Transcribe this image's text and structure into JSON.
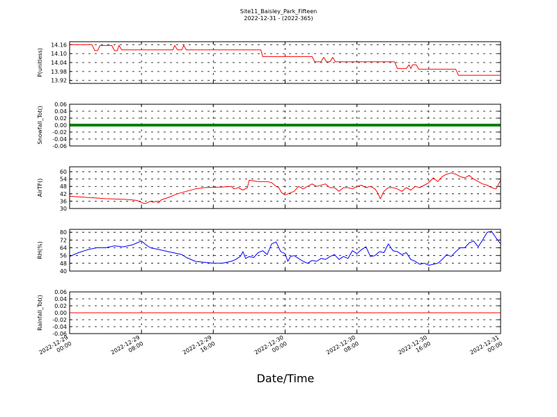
{
  "chart_data": {
    "type": "line",
    "title": "Site11_Baisley_Park_Fifteen",
    "subtitle": "2022-12-31 - (2022-365)",
    "xlabel": "Date/Time",
    "x_ticks": [
      {
        "line1": "2022-12-29",
        "line2": "00:00"
      },
      {
        "line1": "2022-12-29",
        "line2": "08:00"
      },
      {
        "line1": "2022-12-29",
        "line2": "16:00"
      },
      {
        "line1": "2022-12-30",
        "line2": "00:00"
      },
      {
        "line1": "2022-12-30",
        "line2": "08:00"
      },
      {
        "line1": "2022-12-30",
        "line2": "16:00"
      },
      {
        "line1": "2022-12-31",
        "line2": "00:00"
      }
    ],
    "x_range_hours": [
      0,
      48
    ],
    "grid": true,
    "panels": [
      {
        "ylabel": "P(unitless)",
        "ylim": [
          13.9,
          14.18
        ],
        "yticks": [
          "13.92",
          "13.98",
          "14.04",
          "14.10",
          "14.16"
        ],
        "series": [
          {
            "color": "#ff0000",
            "points": [
              [
                0,
                14.16
              ],
              [
                2.5,
                14.16
              ],
              [
                2.8,
                14.12
              ],
              [
                3.1,
                14.12
              ],
              [
                3.4,
                14.155
              ],
              [
                4.7,
                14.155
              ],
              [
                5,
                14.12
              ],
              [
                5.3,
                14.12
              ],
              [
                5.5,
                14.155
              ],
              [
                5.8,
                14.125
              ],
              [
                11.5,
                14.125
              ],
              [
                11.7,
                14.155
              ],
              [
                12,
                14.125
              ],
              [
                12.5,
                14.125
              ],
              [
                12.7,
                14.155
              ],
              [
                13,
                14.125
              ],
              [
                21.3,
                14.125
              ],
              [
                21.5,
                14.08
              ],
              [
                27,
                14.08
              ],
              [
                27.3,
                14.045
              ],
              [
                28,
                14.045
              ],
              [
                28.3,
                14.075
              ],
              [
                28.6,
                14.045
              ],
              [
                29,
                14.045
              ],
              [
                29.3,
                14.075
              ],
              [
                29.6,
                14.045
              ],
              [
                36.2,
                14.045
              ],
              [
                36.5,
                14.0
              ],
              [
                37.5,
                14.0
              ],
              [
                37.8,
                14.025
              ],
              [
                38,
                14.0
              ],
              [
                38.2,
                14.025
              ],
              [
                38.6,
                14.025
              ],
              [
                38.9,
                13.995
              ],
              [
                43,
                13.995
              ],
              [
                43.3,
                13.955
              ],
              [
                48,
                13.955
              ]
            ]
          }
        ]
      },
      {
        "ylabel": "Snowfall_Tot()",
        "ylim": [
          -0.06,
          0.06
        ],
        "yticks": [
          "-0.06",
          "-0.04",
          "-0.02",
          "0.00",
          "0.02",
          "0.04",
          "0.06"
        ],
        "series": [
          {
            "color": "#007f00",
            "thick": true,
            "points": [
              [
                0,
                0
              ],
              [
                48,
                0
              ]
            ]
          }
        ]
      },
      {
        "ylabel": "AirTF()",
        "ylim": [
          30,
          64
        ],
        "yticks": [
          "30",
          "36",
          "42",
          "48",
          "54",
          "60"
        ],
        "series": [
          {
            "color": "#ff0000",
            "points": [
              [
                0,
                40
              ],
              [
                2,
                39
              ],
              [
                4,
                38
              ],
              [
                6,
                37.5
              ],
              [
                7,
                37
              ],
              [
                7.5,
                36.5
              ],
              [
                8,
                35
              ],
              [
                8.3,
                34
              ],
              [
                8.6,
                34.5
              ],
              [
                9,
                36
              ],
              [
                9.3,
                35
              ],
              [
                9.6,
                36
              ],
              [
                9.9,
                34.5
              ],
              [
                10.2,
                37
              ],
              [
                11,
                39
              ],
              [
                12,
                42
              ],
              [
                13,
                44
              ],
              [
                14,
                46
              ],
              [
                15,
                47
              ],
              [
                17,
                47.5
              ],
              [
                18,
                48
              ],
              [
                18.3,
                46
              ],
              [
                18.8,
                47
              ],
              [
                19.3,
                45
              ],
              [
                19.8,
                47
              ],
              [
                20,
                53
              ],
              [
                21,
                52
              ],
              [
                22,
                52
              ],
              [
                22.5,
                51
              ],
              [
                23,
                48
              ],
              [
                23.3,
                47
              ],
              [
                23.6,
                43
              ],
              [
                24,
                41
              ],
              [
                24.5,
                42.5
              ],
              [
                25,
                44
              ],
              [
                25.5,
                48
              ],
              [
                26,
                46
              ],
              [
                26.5,
                48
              ],
              [
                27,
                50
              ],
              [
                27.5,
                48
              ],
              [
                28.5,
                50
              ],
              [
                29,
                47
              ],
              [
                29.5,
                47
              ],
              [
                30,
                44
              ],
              [
                30.5,
                47
              ],
              [
                31,
                47
              ],
              [
                31.5,
                46
              ],
              [
                32,
                48
              ],
              [
                32.5,
                49
              ],
              [
                33,
                47
              ],
              [
                33.5,
                48
              ],
              [
                34,
                46
              ],
              [
                34.3,
                43
              ],
              [
                34.6,
                38
              ],
              [
                35,
                44
              ],
              [
                35.5,
                47
              ],
              [
                36,
                47
              ],
              [
                36.5,
                46
              ],
              [
                37,
                44
              ],
              [
                37.5,
                47
              ],
              [
                38,
                45
              ],
              [
                38.5,
                48
              ],
              [
                39,
                47
              ],
              [
                39.5,
                49
              ],
              [
                40,
                51
              ],
              [
                40.5,
                55
              ],
              [
                41,
                52
              ],
              [
                41.5,
                56
              ],
              [
                42,
                58
              ],
              [
                42.5,
                59
              ],
              [
                43,
                58
              ],
              [
                43.5,
                56
              ],
              [
                44,
                55
              ],
              [
                44.5,
                57
              ],
              [
                45,
                54
              ],
              [
                45.5,
                52
              ],
              [
                46,
                50
              ],
              [
                46.5,
                49
              ],
              [
                47,
                47
              ],
              [
                47.5,
                46
              ],
              [
                48,
                53
              ]
            ]
          }
        ]
      },
      {
        "ylabel": "RH(%)",
        "ylim": [
          40,
          83
        ],
        "yticks": [
          "40",
          "48",
          "56",
          "64",
          "72",
          "80"
        ],
        "series": [
          {
            "color": "#0000ff",
            "points": [
              [
                0,
                55
              ],
              [
                1,
                59
              ],
              [
                2,
                62
              ],
              [
                3,
                64
              ],
              [
                4,
                64
              ],
              [
                5,
                66
              ],
              [
                6,
                65
              ],
              [
                7,
                67
              ],
              [
                7.5,
                69
              ],
              [
                8,
                71
              ],
              [
                8.5,
                67
              ],
              [
                9,
                64
              ],
              [
                10,
                62
              ],
              [
                11,
                60
              ],
              [
                12,
                58
              ],
              [
                12.5,
                57
              ],
              [
                13,
                54
              ],
              [
                14,
                50
              ],
              [
                15,
                49
              ],
              [
                16,
                48
              ],
              [
                17,
                48
              ],
              [
                18,
                50
              ],
              [
                18.5,
                52
              ],
              [
                19,
                55
              ],
              [
                19.3,
                60
              ],
              [
                19.6,
                53
              ],
              [
                20,
                55
              ],
              [
                20.5,
                54
              ],
              [
                21,
                59
              ],
              [
                21.5,
                61
              ],
              [
                22,
                57
              ],
              [
                22.5,
                68
              ],
              [
                23,
                70
              ],
              [
                23.5,
                60
              ],
              [
                24,
                58
              ],
              [
                24.3,
                50
              ],
              [
                24.6,
                55
              ],
              [
                25,
                56
              ],
              [
                25.5,
                53
              ],
              [
                26,
                50
              ],
              [
                26.5,
                48
              ],
              [
                27,
                51
              ],
              [
                27.5,
                50
              ],
              [
                28,
                53
              ],
              [
                28.5,
                52
              ],
              [
                29,
                55
              ],
              [
                29.5,
                57
              ],
              [
                30,
                52
              ],
              [
                30.5,
                55
              ],
              [
                31,
                53
              ],
              [
                31.5,
                61
              ],
              [
                32,
                58
              ],
              [
                32.5,
                62
              ],
              [
                33,
                65
              ],
              [
                33.5,
                55
              ],
              [
                34,
                56
              ],
              [
                34.5,
                60
              ],
              [
                35,
                59
              ],
              [
                35.5,
                68
              ],
              [
                36,
                61
              ],
              [
                36.5,
                60
              ],
              [
                37,
                57
              ],
              [
                37.5,
                59
              ],
              [
                38,
                52
              ],
              [
                38.5,
                50
              ],
              [
                39,
                47
              ],
              [
                39.5,
                48
              ],
              [
                40,
                46
              ],
              [
                40.5,
                47
              ],
              [
                41,
                48
              ],
              [
                41.5,
                52
              ],
              [
                42,
                57
              ],
              [
                42.5,
                55
              ],
              [
                43,
                60
              ],
              [
                43.5,
                64
              ],
              [
                44,
                64
              ],
              [
                44.5,
                69
              ],
              [
                45,
                71
              ],
              [
                45.5,
                65
              ],
              [
                46,
                72
              ],
              [
                46.5,
                80
              ],
              [
                47,
                81
              ],
              [
                47.5,
                74
              ],
              [
                48,
                68
              ]
            ]
          }
        ]
      },
      {
        "ylabel": "Rainfall_Tot()",
        "ylim": [
          -0.06,
          0.06
        ],
        "yticks": [
          "-0.06",
          "-0.04",
          "-0.02",
          "0.00",
          "0.02",
          "0.04",
          "0.06"
        ],
        "series": [
          {
            "color": "#ff0000",
            "points": [
              [
                0,
                0
              ],
              [
                48,
                0
              ]
            ]
          }
        ]
      }
    ]
  }
}
